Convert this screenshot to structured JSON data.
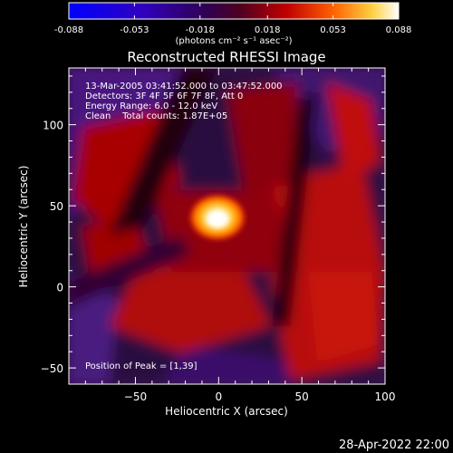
{
  "chart_data": {
    "type": "heatmap",
    "title": "Reconstructed RHESSI Image",
    "xlabel": "Heliocentric X (arcsec)",
    "ylabel": "Heliocentric Y (arcsec)",
    "xlim": [
      -90,
      100
    ],
    "ylim": [
      -60,
      135
    ],
    "x_ticks": [
      -50,
      0,
      50,
      100
    ],
    "y_ticks": [
      -50,
      0,
      50,
      100
    ],
    "colorbar": {
      "ticks": [
        -0.088,
        -0.053,
        -0.018,
        0.018,
        0.053,
        0.088
      ],
      "tick_labels": [
        "-0.088",
        "-0.053",
        "-0.018",
        "0.018",
        "0.053",
        "0.088"
      ],
      "range": [
        -0.088,
        0.088
      ],
      "units_label": "(photons cm⁻² s⁻¹ asec⁻²)",
      "colormap": [
        "#0000ff",
        "#3a00a0",
        "#000000",
        "#a80000",
        "#ff8800",
        "#ffffff"
      ]
    },
    "annotations": [
      "13-Mar-2005 03:41:52.000 to 03:47:52.000",
      "Detectors: 3F 4F 5F 6F 7F 8F, Att 0",
      "Energy Range: 6.0 - 12.0 keV",
      "Clean    Total counts: 1.87E+05"
    ],
    "peak_label": "Position of Peak = [1,39]",
    "peak": [
      1,
      39
    ],
    "footer_date": "28-Apr-2022 22:00"
  }
}
